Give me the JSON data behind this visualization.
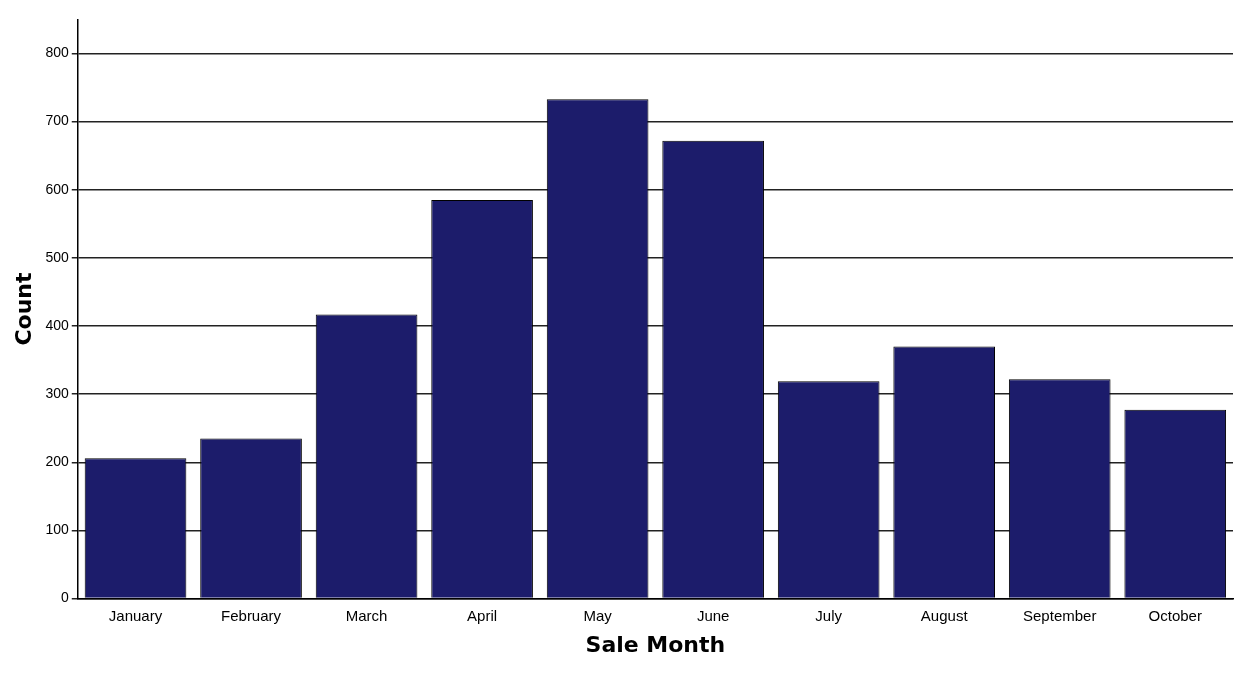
{
  "chart_data": {
    "type": "bar",
    "xlabel": "Sale Month",
    "ylabel": "Count",
    "categories": [
      "January",
      "February",
      "March",
      "April",
      "May",
      "June",
      "July",
      "August",
      "September",
      "October"
    ],
    "values": [
      206,
      235,
      417,
      585,
      733,
      672,
      319,
      370,
      322,
      277
    ],
    "color": "#1c1c6b",
    "ylim": [
      0,
      850
    ],
    "yticks": [
      0,
      100,
      200,
      300,
      400,
      500,
      600,
      700,
      800
    ],
    "grid": "y",
    "legend": false
  }
}
